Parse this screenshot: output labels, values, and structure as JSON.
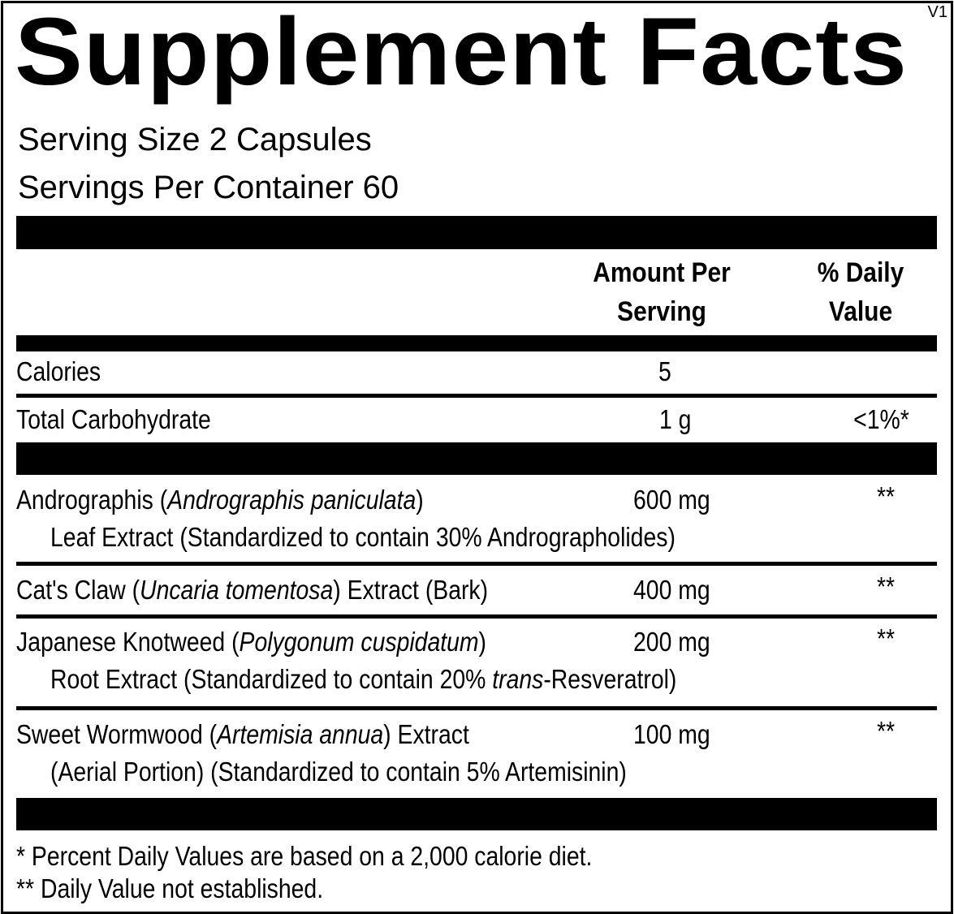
{
  "version": "V1",
  "title": "Supplement Facts",
  "serving_size": "Serving Size  2 Capsules",
  "servings_per_container": "Servings Per Container  60",
  "headers": {
    "amount_line1": "Amount Per",
    "amount_line2": "Serving",
    "dv_line1": "% Daily",
    "dv_line2": "Value"
  },
  "nutrients": [
    {
      "name": "Calories",
      "amount": "5",
      "dv": ""
    },
    {
      "name": "Total Carbohydrate",
      "amount": "1 g",
      "dv": "<1%*"
    }
  ],
  "ingredients": [
    {
      "name": "Andrographis (",
      "latin": "Andrographis paniculata",
      "after": ")",
      "line2": "Leaf Extract (Standardized to contain 30% Andrographolides)",
      "amount": "600 mg",
      "dv": "**"
    },
    {
      "name": "Cat's Claw (",
      "latin": "Uncaria tomentosa",
      "after": ") Extract (Bark)",
      "amount": "400 mg",
      "dv": "**"
    },
    {
      "name": "Japanese Knotweed (",
      "latin": "Polygonum cuspidatum",
      "after": ")",
      "line2_pre": "Root Extract (Standardized to contain 20% ",
      "line2_ital": "trans",
      "line2_post": "-Resveratrol)",
      "amount": "200 mg",
      "dv": "**"
    },
    {
      "name": "Sweet Wormwood (",
      "latin": "Artemisia annua",
      "after": ") Extract",
      "line2": "(Aerial Portion) (Standardized to contain 5% Artemisinin)",
      "amount": "100 mg",
      "dv": "**"
    }
  ],
  "footnotes": [
    "* Percent Daily Values are based on a 2,000 calorie diet.",
    "** Daily Value not established."
  ]
}
